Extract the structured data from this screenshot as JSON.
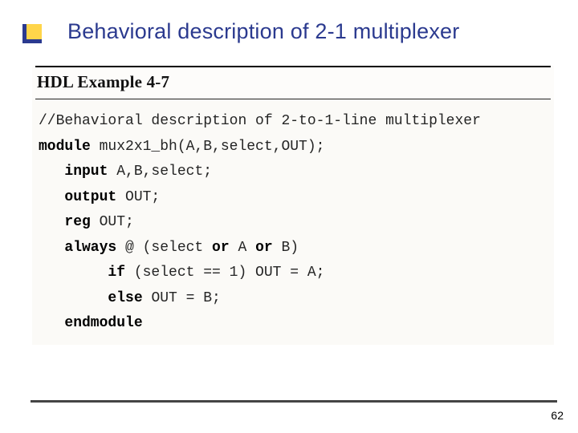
{
  "title": "Behavioral description of 2-1 multiplexer",
  "example_label": "HDL Example 4-7",
  "code": {
    "l1_comment": "//Behavioral description of 2-to-1-line multiplexer",
    "l2_kw": "module",
    "l2_rest": " mux2x1_bh(A,B,select,OUT);",
    "l3_kw": "input",
    "l3_rest": " A,B,select;",
    "l4_kw": "output",
    "l4_rest": " OUT;",
    "l5_kw": "reg",
    "l5_rest": " OUT;",
    "l6_kw": "always",
    "l6_mid1": " @ (select ",
    "l6_or1": "or",
    "l6_mid2": " A ",
    "l6_or2": "or",
    "l6_mid3": " B)",
    "l7_kw": "if",
    "l7_rest": " (select == 1) OUT = A;",
    "l8_kw": "else",
    "l8_rest": " OUT = B;",
    "l9_kw": "endmodule"
  },
  "page_number": "62",
  "colors": {
    "title_color": "#2b3a8f",
    "accent_yellow": "#ffd54a",
    "code_bg": "#fbfaf7"
  }
}
